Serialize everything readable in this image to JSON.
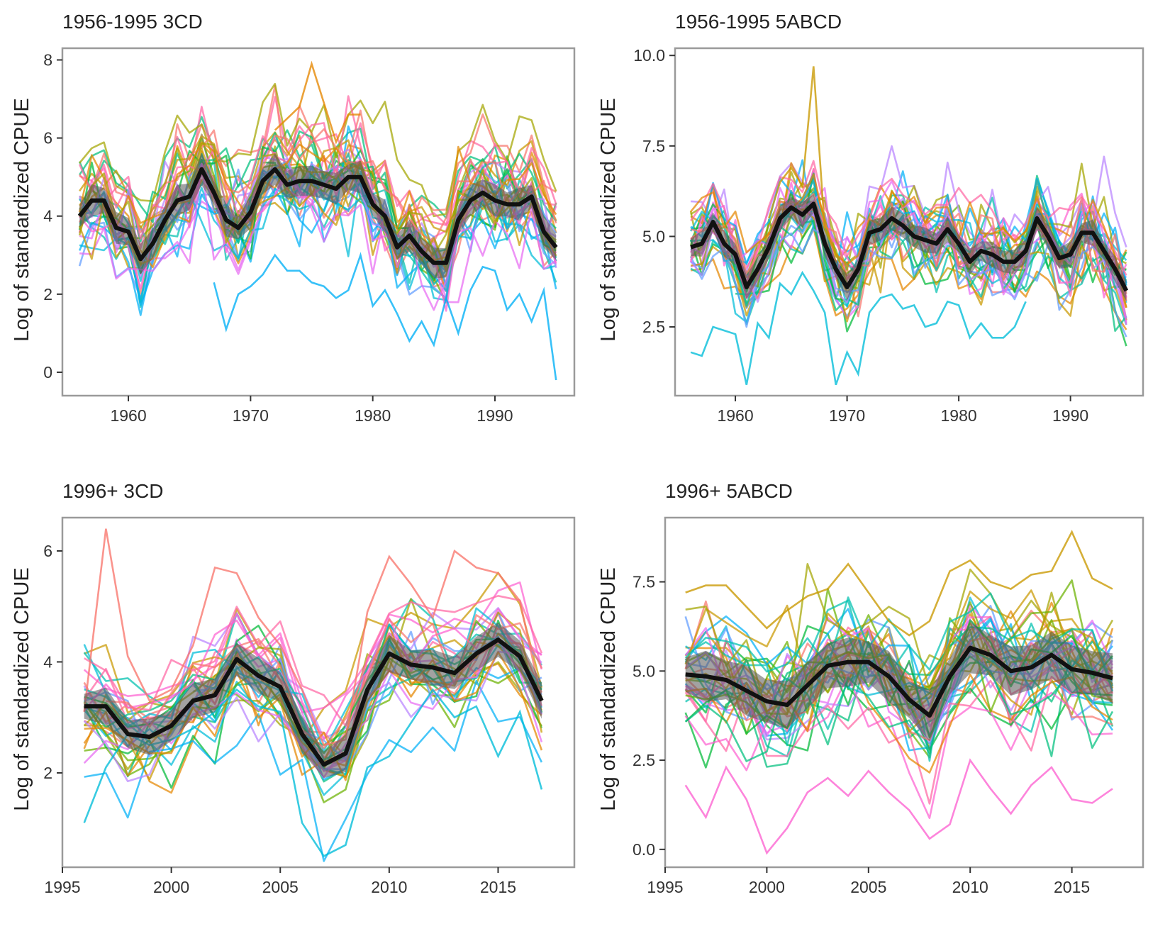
{
  "figure": {
    "ylabel": "Log of standardized CPUE"
  },
  "chart_data": [
    {
      "type": "line",
      "title": "1956-1995 3CD",
      "xlabel": "",
      "ylabel": "Log of standardized CPUE",
      "xlim": [
        1954.6,
        1996.5
      ],
      "ylim": [
        -0.6,
        8.3
      ],
      "xticks": [
        1960,
        1970,
        1980,
        1990
      ],
      "yticks": [
        0,
        2,
        4,
        6,
        8
      ],
      "x_start": 1956,
      "x_end": 1995,
      "grid": false,
      "legend": "none",
      "mean_series": {
        "x": [
          1956,
          1957,
          1958,
          1959,
          1960,
          1961,
          1962,
          1963,
          1964,
          1965,
          1966,
          1967,
          1968,
          1969,
          1970,
          1971,
          1972,
          1973,
          1974,
          1975,
          1976,
          1977,
          1978,
          1979,
          1980,
          1981,
          1982,
          1983,
          1984,
          1985,
          1986,
          1987,
          1988,
          1989,
          1990,
          1991,
          1992,
          1993,
          1994,
          1995
        ],
        "y": [
          4.0,
          4.4,
          4.4,
          3.7,
          3.6,
          2.9,
          3.3,
          3.9,
          4.4,
          4.5,
          5.2,
          4.6,
          3.9,
          3.7,
          4.1,
          4.9,
          5.2,
          4.8,
          4.9,
          4.9,
          4.8,
          4.7,
          5.0,
          5.0,
          4.3,
          4.0,
          3.2,
          3.5,
          3.1,
          2.8,
          2.8,
          3.9,
          4.4,
          4.6,
          4.4,
          4.3,
          4.3,
          4.5,
          3.6,
          3.2
        ],
        "band": 0.35,
        "color": "#111111"
      },
      "background_series": {
        "count": 34,
        "spread": 0.85,
        "outliers": "blue lines near 2, one low drop to -0.2 in 1995"
      }
    },
    {
      "type": "line",
      "title": "1956-1995 5ABCD",
      "xlabel": "",
      "ylabel": "Log of standardized CPUE",
      "xlim": [
        1954.6,
        1996.5
      ],
      "ylim": [
        0.6,
        10.2
      ],
      "xticks": [
        1960,
        1970,
        1980,
        1990
      ],
      "yticks": [
        2.5,
        5.0,
        7.5,
        10.0
      ],
      "ytick_labels": [
        "2.5",
        "5.0",
        "7.5",
        "10.0"
      ],
      "x_start": 1956,
      "x_end": 1995,
      "grid": false,
      "legend": "none",
      "mean_series": {
        "x": [
          1956,
          1957,
          1958,
          1959,
          1960,
          1961,
          1962,
          1963,
          1964,
          1965,
          1966,
          1967,
          1968,
          1969,
          1970,
          1971,
          1972,
          1973,
          1974,
          1975,
          1976,
          1977,
          1978,
          1979,
          1980,
          1981,
          1982,
          1983,
          1984,
          1985,
          1986,
          1987,
          1988,
          1989,
          1990,
          1991,
          1992,
          1993,
          1994,
          1995
        ],
        "y": [
          4.7,
          4.8,
          5.4,
          4.8,
          4.5,
          3.6,
          4.1,
          4.7,
          5.5,
          5.8,
          5.6,
          5.9,
          4.8,
          4.1,
          3.6,
          4.1,
          5.1,
          5.2,
          5.5,
          5.3,
          5.0,
          4.9,
          4.8,
          5.2,
          4.8,
          4.3,
          4.6,
          4.5,
          4.3,
          4.3,
          4.6,
          5.5,
          5.0,
          4.4,
          4.5,
          5.1,
          5.1,
          4.6,
          4.1,
          3.5
        ],
        "band": 0.3,
        "color": "#111111"
      },
      "background_series": {
        "count": 32,
        "spread": 0.85,
        "outliers": "spike to 9.7 in 1967"
      }
    },
    {
      "type": "line",
      "title": "1996+ 3CD",
      "xlabel": "",
      "ylabel": "Log of standardized CPUE",
      "xlim": [
        1995,
        2018.5
      ],
      "ylim": [
        0.3,
        6.6
      ],
      "xticks": [
        1995,
        2000,
        2005,
        2010,
        2015
      ],
      "yticks": [
        2,
        4,
        6
      ],
      "x_start": 1996,
      "x_end": 2017,
      "grid": false,
      "legend": "none",
      "mean_series": {
        "x": [
          1996,
          1997,
          1998,
          1999,
          2000,
          2001,
          2002,
          2003,
          2004,
          2005,
          2006,
          2007,
          2008,
          2009,
          2010,
          2011,
          2012,
          2013,
          2014,
          2015,
          2016,
          2017
        ],
        "y": [
          3.2,
          3.2,
          2.7,
          2.65,
          2.85,
          3.3,
          3.4,
          4.05,
          3.75,
          3.55,
          2.7,
          2.15,
          2.35,
          3.5,
          4.15,
          3.95,
          3.9,
          3.8,
          4.15,
          4.4,
          4.1,
          3.3
        ],
        "band": 0.28,
        "color": "#111111"
      },
      "background_series": {
        "count": 32,
        "spread": 0.6,
        "outliers": "peak to 6.4 in 1997, lows near 0.5 in 2007"
      }
    },
    {
      "type": "line",
      "title": "1996+ 5ABCD",
      "xlabel": "",
      "ylabel": "Log of standardized CPUE",
      "xlim": [
        1995,
        2018.5
      ],
      "ylim": [
        -0.5,
        9.3
      ],
      "xticks": [
        1995,
        2000,
        2005,
        2010,
        2015
      ],
      "yticks": [
        0.0,
        2.5,
        5.0,
        7.5
      ],
      "ytick_labels": [
        "0.0",
        "2.5",
        "5.0",
        "7.5"
      ],
      "x_start": 1996,
      "x_end": 2017,
      "grid": false,
      "legend": "none",
      "mean_series": {
        "x": [
          1996,
          1997,
          1998,
          1999,
          2000,
          2001,
          2002,
          2003,
          2004,
          2005,
          2006,
          2007,
          2008,
          2009,
          2010,
          2011,
          2012,
          2013,
          2014,
          2015,
          2016,
          2017
        ],
        "y": [
          4.9,
          4.85,
          4.75,
          4.45,
          4.15,
          4.05,
          4.6,
          5.15,
          5.25,
          5.25,
          4.85,
          4.2,
          3.75,
          4.85,
          5.65,
          5.45,
          5.0,
          5.1,
          5.45,
          5.05,
          4.95,
          4.8
        ],
        "band": 0.6,
        "color": "#111111"
      },
      "background_series": {
        "count": 38,
        "spread": 1.2,
        "outliers": "peak 8.9 in 2015, lows near 0 in 2000"
      }
    }
  ],
  "palette": [
    "#f8766d",
    "#e58700",
    "#c99800",
    "#a3a500",
    "#6bb100",
    "#00ba38",
    "#00bf7d",
    "#00c0af",
    "#00bcd8",
    "#00b0f6",
    "#619cff",
    "#b983ff",
    "#e76bf3",
    "#fd61d1",
    "#ff67a4"
  ]
}
